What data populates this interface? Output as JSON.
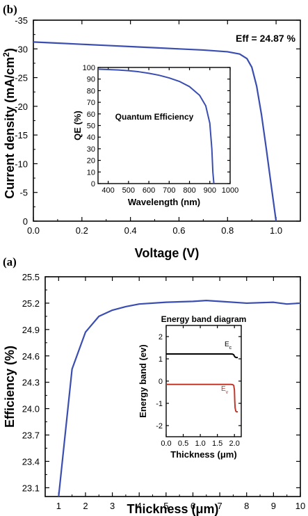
{
  "chart_data": [
    {
      "id": "b",
      "type": "line",
      "panel_label": "(b)",
      "xlabel": "Voltage (V)",
      "ylabel_main": "Current density (mA/cm",
      "ylabel_sup": "2",
      "ylabel_end": ")",
      "xlim": [
        0.0,
        1.1
      ],
      "ylim": [
        0,
        -35
      ],
      "xticks": [
        0.0,
        0.2,
        0.4,
        0.6,
        0.8,
        1.0
      ],
      "xtick_labels": [
        "0.0",
        "0.2",
        "0.4",
        "0.6",
        "0.8",
        "1.0"
      ],
      "yticks": [
        -35,
        -30,
        -25,
        -20,
        -15,
        -10,
        -5,
        0
      ],
      "ytick_labels": [
        "-35",
        "-30",
        "-25",
        "-20",
        "-15",
        "-10",
        "-5",
        "0"
      ],
      "annotation": "Eff = 24.87 %",
      "series": [
        {
          "color": "#3a4db0",
          "x": [
            0.0,
            0.1,
            0.2,
            0.3,
            0.4,
            0.5,
            0.6,
            0.7,
            0.8,
            0.85,
            0.88,
            0.9,
            0.92,
            0.94,
            0.96,
            0.98,
            1.0
          ],
          "y": [
            -31.2,
            -31.0,
            -30.8,
            -30.6,
            -30.4,
            -30.2,
            -30.0,
            -29.8,
            -29.5,
            -29.1,
            -28.3,
            -26.8,
            -23.5,
            -18.5,
            -12.5,
            -6.2,
            0.0
          ]
        }
      ],
      "inset": {
        "type": "line",
        "title": "Quantum Efficiency",
        "xlabel": "Wavelength (nm)",
        "ylabel": "QE (%)",
        "xlim": [
          350,
          1000
        ],
        "ylim": [
          0,
          100
        ],
        "xticks": [
          400,
          500,
          600,
          700,
          800,
          900,
          1000
        ],
        "xtick_labels": [
          "400",
          "500",
          "600",
          "700",
          "800",
          "900",
          "1000"
        ],
        "yticks": [
          0,
          10,
          20,
          30,
          40,
          50,
          60,
          70,
          80,
          90,
          100
        ],
        "ytick_labels": [
          "0",
          "10",
          "20",
          "30",
          "40",
          "50",
          "60",
          "70",
          "80",
          "90",
          "100"
        ],
        "series": [
          {
            "color": "#3a4db0",
            "x": [
              350,
              400,
              450,
              500,
              550,
              600,
              650,
              700,
              750,
              800,
              850,
              880,
              900,
              910,
              915,
              920
            ],
            "y": [
              98.5,
              98.2,
              97.8,
              97.2,
              96.3,
              95.0,
              93.3,
              91.0,
              88.0,
              83.5,
              76.0,
              67.0,
              52.0,
              30.0,
              10.0,
              0.0
            ]
          }
        ]
      }
    },
    {
      "id": "a",
      "type": "line",
      "panel_label": "(a)",
      "xlabel_main": "Thickness (",
      "xlabel_mu": "μ",
      "xlabel_end": "m)",
      "ylabel": "Efficiency (%)",
      "xlim": [
        0.5,
        10
      ],
      "ylim": [
        23.0,
        25.5
      ],
      "xticks": [
        1,
        2,
        3,
        4,
        5,
        6,
        7,
        8,
        9,
        10
      ],
      "xtick_labels": [
        "1",
        "2",
        "3",
        "4",
        "5",
        "6",
        "7",
        "8",
        "9",
        "10"
      ],
      "yticks": [
        23.1,
        23.4,
        23.7,
        24.0,
        24.3,
        24.6,
        24.9,
        25.2,
        25.5
      ],
      "ytick_labels": [
        "23.1",
        "23.4",
        "23.7",
        "24.0",
        "24.3",
        "24.6",
        "24.9",
        "25.2",
        "25.5"
      ],
      "series": [
        {
          "color": "#3a4db0",
          "x": [
            1.0,
            1.5,
            2.0,
            2.5,
            3.0,
            3.5,
            4.0,
            5.0,
            6.0,
            6.5,
            7.0,
            8.0,
            9.0,
            9.5,
            10.0
          ],
          "y": [
            23.0,
            24.45,
            24.87,
            25.05,
            25.12,
            25.16,
            25.19,
            25.21,
            25.22,
            25.23,
            25.22,
            25.2,
            25.21,
            25.19,
            25.2
          ]
        }
      ],
      "inset": {
        "type": "line",
        "title": "Energy band diagram",
        "xlabel_main": "Thickness (",
        "xlabel_mu": "μ",
        "xlabel_end": "m)",
        "ylabel": "Energy band (ev)",
        "xlim": [
          0,
          2.2
        ],
        "ylim": [
          -2.5,
          2.5
        ],
        "xticks": [
          0.0,
          0.5,
          1.0,
          1.5,
          2.0
        ],
        "xtick_labels": [
          "0.0",
          "0.5",
          "1.0",
          "1.5",
          "2.0"
        ],
        "yticks": [
          -2,
          -1,
          0,
          1,
          2
        ],
        "ytick_labels": [
          "-2",
          "-1",
          "0",
          "1",
          "2"
        ],
        "label_ec": "E",
        "label_ec_sub": "c",
        "label_ev": "E",
        "label_ev_sub": "v",
        "series": [
          {
            "color": "#000000",
            "x": [
              0.0,
              1.5,
              1.9,
              1.95,
              1.98,
              2.0,
              2.02,
              2.05,
              2.1
            ],
            "y": [
              1.22,
              1.22,
              1.22,
              1.21,
              1.18,
              1.12,
              1.08,
              1.06,
              1.06
            ]
          },
          {
            "color": "#c0392b",
            "x": [
              0.0,
              1.5,
              1.9,
              1.95,
              1.98,
              2.0,
              2.01,
              2.02,
              2.04,
              2.06,
              2.1
            ],
            "y": [
              -0.15,
              -0.15,
              -0.15,
              -0.16,
              -0.2,
              -0.4,
              -0.9,
              -1.2,
              -1.35,
              -1.38,
              -1.38
            ]
          }
        ]
      }
    }
  ]
}
